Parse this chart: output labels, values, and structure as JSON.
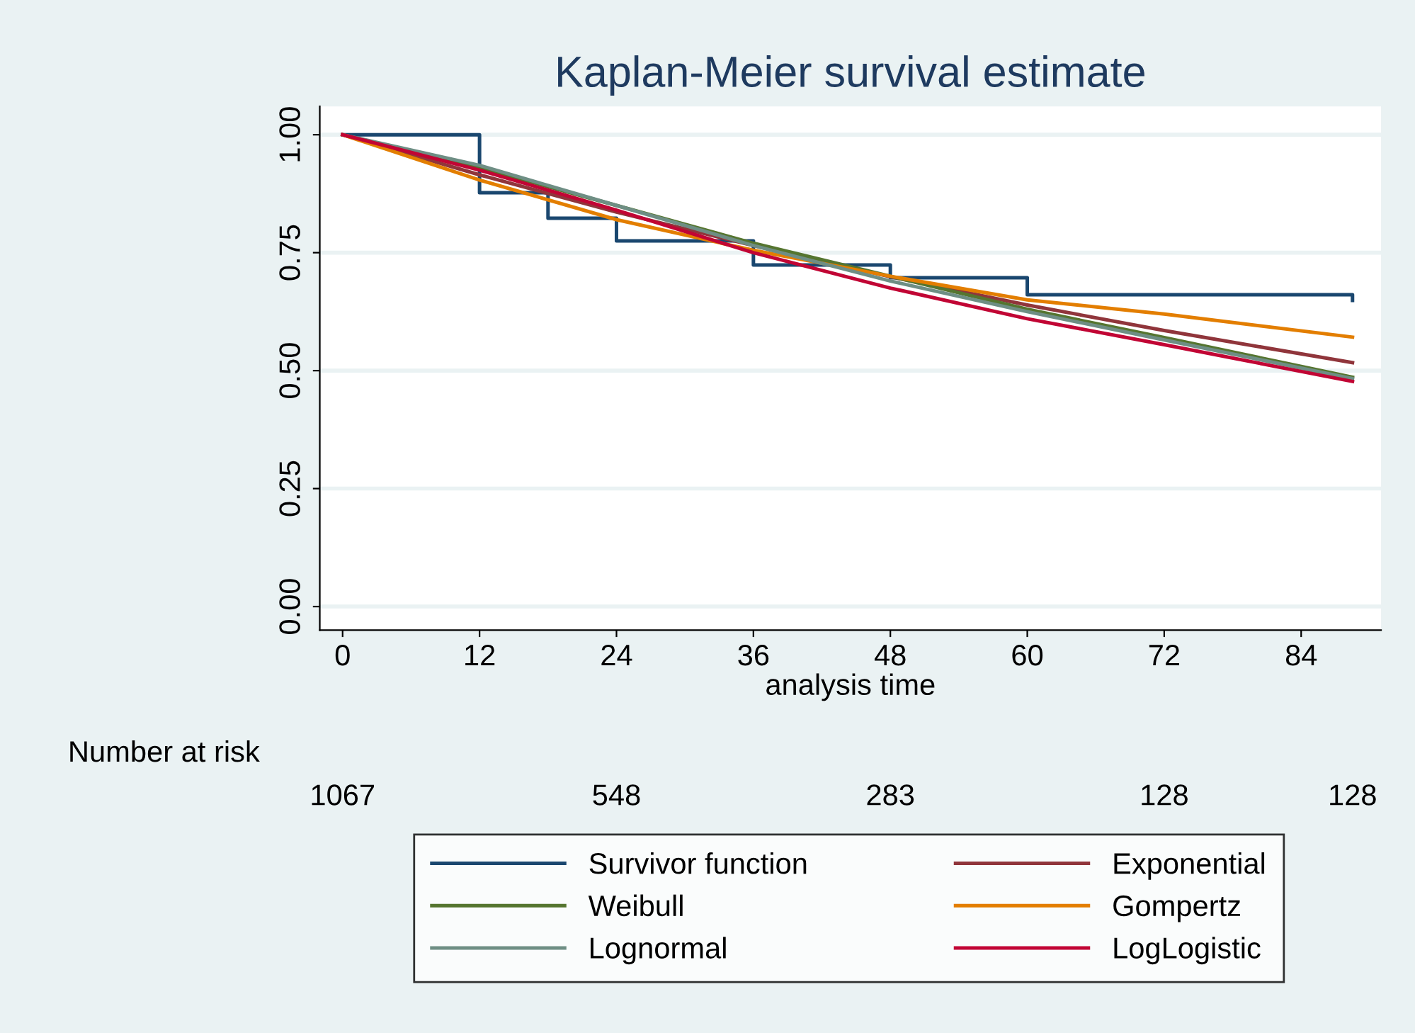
{
  "chart_data": {
    "type": "line",
    "title": "Kaplan-Meier survival estimate",
    "xlabel": "analysis time",
    "xlim": [
      -2,
      91
    ],
    "xticks": [
      0,
      12,
      24,
      36,
      48,
      60,
      72,
      84
    ],
    "ylim": [
      -0.05,
      1.06
    ],
    "yticks": [
      {
        "value": 0,
        "label": "0.00"
      },
      {
        "value": 0.25,
        "label": "0.25"
      },
      {
        "value": 0.5,
        "label": "0.50"
      },
      {
        "value": 0.75,
        "label": "0.75"
      },
      {
        "value": 1,
        "label": "1.00"
      }
    ],
    "grid": "y",
    "legend": "bottom",
    "marker": "none",
    "line_style": "solid",
    "annotations": [
      "Number at risk",
      "1067",
      "548",
      "283",
      "128",
      "128"
    ],
    "series": [
      {
        "name": "Survivor function",
        "type": "step",
        "color": "#1a476f",
        "x": [
          0,
          12,
          18,
          24,
          36,
          48,
          60,
          88.5
        ],
        "values": [
          1,
          0.877,
          0.823,
          0.775,
          0.724,
          0.697,
          0.661,
          0.649
        ]
      },
      {
        "name": "Exponential",
        "color": "#90353b",
        "x": [
          0,
          12,
          24,
          36,
          48,
          60,
          72,
          88.5
        ],
        "values": [
          1,
          0.915,
          0.836,
          0.765,
          0.699,
          0.639,
          0.585,
          0.517
        ]
      },
      {
        "name": "Weibull",
        "color": "#55752f",
        "x": [
          0,
          12,
          24,
          36,
          48,
          60,
          72,
          88.5
        ],
        "values": [
          1,
          0.93,
          0.85,
          0.77,
          0.7,
          0.63,
          0.57,
          0.486
        ]
      },
      {
        "name": "Gompertz",
        "color": "#e37e00",
        "x": [
          0,
          12,
          24,
          36,
          48,
          60,
          72,
          88.5
        ],
        "values": [
          1,
          0.904,
          0.82,
          0.755,
          0.7,
          0.65,
          0.62,
          0.571
        ]
      },
      {
        "name": "Lognormal",
        "color": "#6e8e84",
        "x": [
          0,
          12,
          24,
          36,
          48,
          60,
          72,
          88.5
        ],
        "values": [
          1,
          0.935,
          0.85,
          0.765,
          0.69,
          0.625,
          0.565,
          0.483
        ]
      },
      {
        "name": "LogLogistic",
        "color": "#c10534",
        "x": [
          0,
          12,
          24,
          36,
          48,
          60,
          72,
          88.5
        ],
        "values": [
          1,
          0.925,
          0.84,
          0.75,
          0.675,
          0.61,
          0.555,
          0.477
        ]
      }
    ]
  }
}
